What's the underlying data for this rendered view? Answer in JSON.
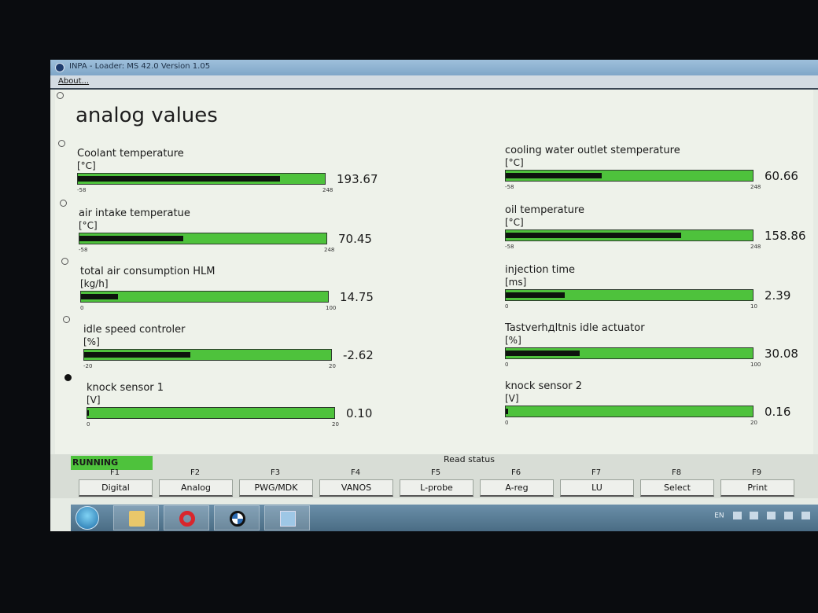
{
  "window": {
    "title": "INPA - Loader: MS 42.0 Version 1.05"
  },
  "menu": {
    "about": "About..."
  },
  "page": {
    "heading": "analog values"
  },
  "gauges": [
    {
      "name": "Coolant temperature",
      "unit": "[°C]",
      "min": "-58",
      "max": "248",
      "value": "193.67",
      "fill": 0.82
    },
    {
      "name": "air intake temperatue",
      "unit": "[°C]",
      "min": "-58",
      "max": "248",
      "value": "70.45",
      "fill": 0.42
    },
    {
      "name": "total air consumption HLM",
      "unit": "[kg/h]",
      "min": "0",
      "max": "100",
      "value": "14.75",
      "fill": 0.15
    },
    {
      "name": "idle speed controler",
      "unit": "[%]",
      "min": "-20",
      "max": "20",
      "value": "-2.62",
      "fill": 0.43
    },
    {
      "name": "knock sensor 1",
      "unit": "[V]",
      "min": "0",
      "max": "20",
      "value": "0.10",
      "fill": 0.005
    },
    {
      "name": "cooling water outlet stemperature",
      "unit": "[°C]",
      "min": "-58",
      "max": "248",
      "value": "60.66",
      "fill": 0.39
    },
    {
      "name": "oil temperature",
      "unit": "[°C]",
      "min": "-58",
      "max": "248",
      "value": "158.86",
      "fill": 0.71
    },
    {
      "name": "injection time",
      "unit": "[ms]",
      "min": "0",
      "max": "10",
      "value": "2.39",
      "fill": 0.24
    },
    {
      "name": "Tastverhдltnis idle actuator",
      "unit": "[%]",
      "min": "0",
      "max": "100",
      "value": "30.08",
      "fill": 0.3
    },
    {
      "name": "knock sensor 2",
      "unit": "[V]",
      "min": "0",
      "max": "20",
      "value": "0.16",
      "fill": 0.008
    }
  ],
  "status": {
    "running": "RUNNING",
    "read_status": "Read status"
  },
  "fkeys": [
    {
      "code": "F1",
      "label": "Digital"
    },
    {
      "code": "F2",
      "label": "Analog"
    },
    {
      "code": "F3",
      "label": "PWG/MDK"
    },
    {
      "code": "F4",
      "label": "VANOS"
    },
    {
      "code": "F5",
      "label": "L-probe"
    },
    {
      "code": "F6",
      "label": "A-reg"
    },
    {
      "code": "F7",
      "label": "LU"
    },
    {
      "code": "F8",
      "label": "Select"
    },
    {
      "code": "F9",
      "label": "Print"
    }
  ],
  "taskbar": {
    "language": "EN"
  },
  "colors": {
    "bar": "#4ec23c",
    "fill": "#0d140d"
  }
}
